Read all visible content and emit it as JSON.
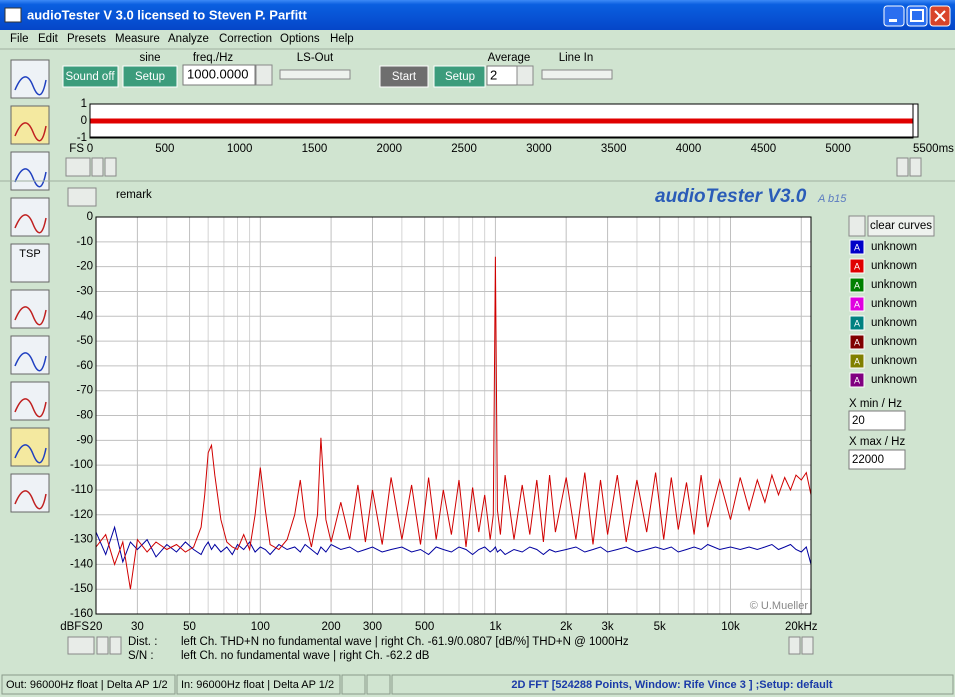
{
  "window": {
    "title": "audioTester  V 3.0    licensed to Steven P. Parfitt"
  },
  "menu": [
    "File",
    "Edit",
    "Presets",
    "Measure",
    "Analyze",
    "Correction",
    "Options",
    "Help"
  ],
  "toolbar": {
    "sine": "sine",
    "sound_off": "Sound off",
    "setup_generator": "Setup",
    "freq_label": "freq./Hz",
    "freq_value": "1000.0000",
    "ls_out": "LS-Out",
    "start": "Start",
    "setup_input": "Setup",
    "average_label": "Average",
    "average_value": "2",
    "line_in": "Line In"
  },
  "side_tools": {
    "tsp": "TSP"
  },
  "spectrum_header": {
    "remark": "remark",
    "brand": "audioTester V3.0",
    "build": "A b15"
  },
  "curves_panel": {
    "clear": "clear curves",
    "curves": [
      {
        "mark": "A",
        "name": "unknown",
        "color": "#0000c8"
      },
      {
        "mark": "A",
        "name": "unknown",
        "color": "#e00000"
      },
      {
        "mark": "A",
        "name": "unknown",
        "color": "#008000"
      },
      {
        "mark": "A",
        "name": "unknown",
        "color": "#e000e0"
      },
      {
        "mark": "A",
        "name": "unknown",
        "color": "#008080"
      },
      {
        "mark": "A",
        "name": "unknown",
        "color": "#800000"
      },
      {
        "mark": "A",
        "name": "unknown",
        "color": "#808000"
      },
      {
        "mark": "A",
        "name": "unknown",
        "color": "#800080"
      }
    ],
    "xmin_label": "X min / Hz",
    "xmin_value": "20",
    "xmax_label": "X max / Hz",
    "xmax_value": "22000"
  },
  "readout": {
    "dist_label": "Dist. :",
    "dist_text": "left Ch. THD+N  no fundamental wave | right Ch. -61.9/0.0807 [dB/%] THD+N  @ 1000Hz",
    "sn_label": "S/N :",
    "sn_text": "left Ch.  no fundamental wave | right Ch. -62.2 dB"
  },
  "status_bar": {
    "out": "Out: 96000Hz float  | Delta AP 1/2",
    "in": "In: 96000Hz float  | Delta AP 1/2",
    "mode": "2D FFT [524288 Points, Window: Rife Vince 3 ] ;Setup:  default"
  },
  "chart_data": [
    {
      "type": "line",
      "y_label": "FS",
      "x": [
        0,
        5500
      ],
      "series": [
        {
          "color": "#e00000",
          "values": [
            0,
            0
          ]
        }
      ],
      "xlim": [
        0,
        5500
      ],
      "xticks": [
        0,
        500,
        1000,
        1500,
        2000,
        2500,
        3000,
        3500,
        4000,
        4500,
        5000,
        {
          "value": 5500,
          "label": "5500ms"
        }
      ],
      "ylim": [
        -1,
        1
      ],
      "yticks": [
        1,
        0,
        -1
      ],
      "grid": false
    },
    {
      "type": "line",
      "y_label": "dBFS",
      "annotation": "© U.Mueller",
      "x_scale": "log",
      "grid": true,
      "x": [
        20,
        22,
        24,
        26,
        28,
        30,
        33,
        36,
        40,
        44,
        48,
        52,
        56,
        58,
        60,
        62,
        64,
        68,
        72,
        76,
        80,
        85,
        90,
        95,
        100,
        105,
        110,
        120,
        130,
        140,
        148,
        155,
        165,
        175,
        181,
        190,
        200,
        220,
        240,
        260,
        280,
        300,
        330,
        360,
        400,
        440,
        480,
        520,
        560,
        600,
        650,
        700,
        750,
        800,
        850,
        900,
        950,
        980,
        1000,
        1020,
        1050,
        1100,
        1200,
        1300,
        1400,
        1500,
        1600,
        1700,
        1800,
        2000,
        2200,
        2400,
        2600,
        2800,
        3000,
        3300,
        3600,
        4000,
        4400,
        4800,
        5200,
        5600,
        6000,
        6500,
        7000,
        7500,
        8000,
        9000,
        10000,
        11000,
        12000,
        13000,
        14000,
        15000,
        16000,
        17000,
        18000,
        19000,
        20000,
        21000,
        22000
      ],
      "series": [
        {
          "color": "#0000a0",
          "values": [
            -127,
            -136,
            -125,
            -139,
            -131,
            -134,
            -130,
            -137,
            -132,
            -135,
            -131,
            -134,
            -136,
            -133,
            -131,
            -134,
            -132,
            -135,
            -133,
            -136,
            -132,
            -134,
            -131,
            -135,
            -133,
            -134,
            -136,
            -132,
            -134,
            -133,
            -135,
            -132,
            -134,
            -136,
            -133,
            -135,
            -132,
            -134,
            -133,
            -135,
            -134,
            -133,
            -135,
            -134,
            -133,
            -135,
            -134,
            -136,
            -133,
            -134,
            -135,
            -133,
            -134,
            -136,
            -134,
            -133,
            -135,
            -134,
            -133,
            -135,
            -134,
            -136,
            -134,
            -135,
            -133,
            -134,
            -136,
            -134,
            -135,
            -134,
            -133,
            -135,
            -134,
            -133,
            -135,
            -134,
            -133,
            -135,
            -134,
            -133,
            -134,
            -133,
            -135,
            -134,
            -133,
            -134,
            -132,
            -134,
            -133,
            -134,
            -133,
            -134,
            -133,
            -132,
            -134,
            -133,
            -132,
            -134,
            -135,
            -133,
            -140
          ]
        },
        {
          "color": "#d00000",
          "values": [
            -133,
            -128,
            -140,
            -131,
            -150,
            -130,
            -135,
            -131,
            -134,
            -132,
            -135,
            -133,
            -125,
            -112,
            -95,
            -92,
            -104,
            -122,
            -131,
            -133,
            -134,
            -128,
            -134,
            -120,
            -101,
            -118,
            -132,
            -134,
            -130,
            -120,
            -106,
            -122,
            -133,
            -120,
            -89,
            -122,
            -131,
            -115,
            -130,
            -108,
            -131,
            -110,
            -132,
            -105,
            -130,
            -108,
            -132,
            -105,
            -130,
            -110,
            -128,
            -106,
            -133,
            -109,
            -127,
            -112,
            -130,
            -120,
            -16,
            -118,
            -128,
            -104,
            -130,
            -108,
            -128,
            -106,
            -131,
            -104,
            -127,
            -105,
            -130,
            -103,
            -132,
            -106,
            -128,
            -104,
            -131,
            -106,
            -127,
            -103,
            -130,
            -105,
            -126,
            -107,
            -128,
            -104,
            -125,
            -106,
            -122,
            -105,
            -118,
            -106,
            -115,
            -104,
            -112,
            -105,
            -110,
            -104,
            -106,
            -103,
            -112
          ]
        }
      ],
      "xlim": [
        20,
        22000
      ],
      "xticks": [
        20,
        30,
        50,
        100,
        200,
        300,
        500,
        {
          "value": 1000,
          "label": "1k"
        },
        {
          "value": 2000,
          "label": "2k"
        },
        {
          "value": 3000,
          "label": "3k"
        },
        {
          "value": 5000,
          "label": "5k"
        },
        {
          "value": 10000,
          "label": "10k"
        },
        {
          "value": 20000,
          "label": "20kHz"
        }
      ],
      "minor_xticks": [
        40,
        60,
        70,
        80,
        90,
        400,
        600,
        700,
        800,
        900,
        4000,
        6000,
        7000,
        8000,
        9000
      ],
      "ylim": [
        -160,
        0
      ],
      "yticks": [
        0,
        -10,
        -20,
        -30,
        -40,
        -50,
        -60,
        -70,
        -80,
        -90,
        -100,
        -110,
        -120,
        -130,
        -140,
        -150,
        -160
      ]
    }
  ]
}
